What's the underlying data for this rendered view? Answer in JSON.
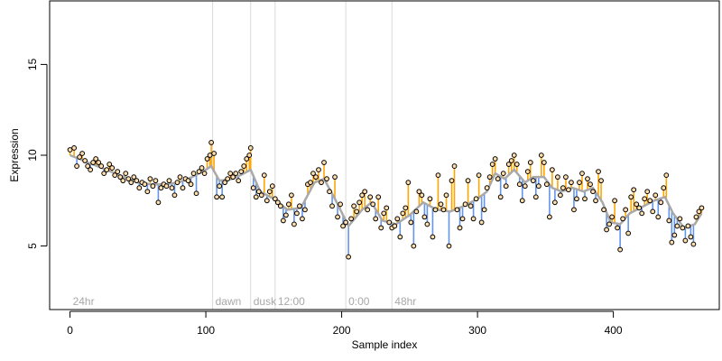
{
  "chart_data": {
    "type": "scatter",
    "title": "",
    "xlabel": "Sample index",
    "ylabel": "Expression",
    "xlim": [
      -15,
      478
    ],
    "ylim": [
      1.5,
      18.5
    ],
    "x_ticks": [
      0,
      100,
      200,
      300,
      400
    ],
    "y_ticks": [
      5,
      10,
      15
    ],
    "grid": false,
    "legend": "none",
    "colors": {
      "above_fit": "#ffa500",
      "below_fit": "#6495ed",
      "fit_line": "#a9a9a9",
      "point_fill": "#ffdead",
      "point_stroke": "#000000",
      "marker_line": "#d9d9d9",
      "marker_text": "#a8a8a8"
    },
    "markers": [
      {
        "x": 0,
        "label": "24hr"
      },
      {
        "x": 105,
        "label": "dawn"
      },
      {
        "x": 133,
        "label": "dusk"
      },
      {
        "x": 151,
        "label": "12:00"
      },
      {
        "x": 203,
        "label": "0:00"
      },
      {
        "x": 237,
        "label": "48hr"
      }
    ],
    "series": [
      {
        "points": [
          [
            0,
            10.3
          ],
          [
            3,
            10.4
          ],
          [
            5,
            9.4
          ],
          [
            7,
            9.9
          ],
          [
            9,
            10.1
          ],
          [
            11,
            9.7
          ],
          [
            13,
            9.4
          ],
          [
            15,
            9.2
          ],
          [
            17,
            9.6
          ],
          [
            19,
            9.8
          ],
          [
            21,
            9.6
          ],
          [
            23,
            9.4
          ],
          [
            25,
            9.0
          ],
          [
            27,
            9.2
          ],
          [
            29,
            9.5
          ],
          [
            31,
            9.3
          ],
          [
            33,
            8.9
          ],
          [
            35,
            9.1
          ],
          [
            37,
            8.8
          ],
          [
            39,
            8.6
          ],
          [
            41,
            9.0
          ],
          [
            43,
            8.7
          ],
          [
            45,
            8.5
          ],
          [
            47,
            8.8
          ],
          [
            49,
            8.6
          ],
          [
            51,
            8.2
          ],
          [
            53,
            8.5
          ],
          [
            55,
            8.4
          ],
          [
            57,
            8.0
          ],
          [
            59,
            8.7
          ],
          [
            61,
            8.3
          ],
          [
            63,
            8.6
          ],
          [
            65,
            7.4
          ],
          [
            67,
            8.2
          ],
          [
            69,
            8.4
          ],
          [
            71,
            8.3
          ],
          [
            73,
            8.6
          ],
          [
            75,
            8.2
          ],
          [
            77,
            7.8
          ],
          [
            79,
            8.5
          ],
          [
            81,
            8.8
          ],
          [
            83,
            8.2
          ],
          [
            85,
            8.7
          ],
          [
            87,
            8.6
          ],
          [
            89,
            8.4
          ],
          [
            91,
            9.0
          ],
          [
            93,
            7.9
          ],
          [
            95,
            9.1
          ],
          [
            97,
            9.3
          ],
          [
            99,
            9.0
          ],
          [
            101,
            9.8
          ],
          [
            103,
            10.0
          ],
          [
            104,
            10.7
          ],
          [
            106,
            10.1
          ],
          [
            108,
            7.7
          ],
          [
            110,
            8.3
          ],
          [
            112,
            7.7
          ],
          [
            114,
            8.5
          ],
          [
            116,
            8.7
          ],
          [
            118,
            9.0
          ],
          [
            120,
            8.8
          ],
          [
            122,
            9.0
          ],
          [
            124,
            8.6
          ],
          [
            126,
            9.1
          ],
          [
            128,
            9.4
          ],
          [
            130,
            9.8
          ],
          [
            132,
            10.0
          ],
          [
            133,
            10.4
          ],
          [
            135,
            8.2
          ],
          [
            137,
            7.7
          ],
          [
            139,
            8.0
          ],
          [
            141,
            7.8
          ],
          [
            143,
            8.9
          ],
          [
            145,
            7.5
          ],
          [
            147,
            8.0
          ],
          [
            149,
            8.3
          ],
          [
            151,
            7.6
          ],
          [
            153,
            7.4
          ],
          [
            155,
            7.2
          ],
          [
            157,
            6.4
          ],
          [
            159,
            6.7
          ],
          [
            161,
            7.3
          ],
          [
            163,
            7.8
          ],
          [
            165,
            6.2
          ],
          [
            167,
            6.8
          ],
          [
            169,
            7.2
          ],
          [
            171,
            6.5
          ],
          [
            173,
            7.0
          ],
          [
            175,
            8.4
          ],
          [
            177,
            8.5
          ],
          [
            179,
            9.0
          ],
          [
            181,
            8.8
          ],
          [
            183,
            9.2
          ],
          [
            185,
            8.5
          ],
          [
            187,
            9.6
          ],
          [
            189,
            8.7
          ],
          [
            191,
            8.0
          ],
          [
            193,
            7.2
          ],
          [
            195,
            8.8
          ],
          [
            197,
            6.6
          ],
          [
            199,
            7.3
          ],
          [
            201,
            6.1
          ],
          [
            203,
            6.3
          ],
          [
            205,
            4.4
          ],
          [
            207,
            6.5
          ],
          [
            209,
            7.2
          ],
          [
            211,
            6.9
          ],
          [
            213,
            7.4
          ],
          [
            215,
            7.8
          ],
          [
            217,
            8.0
          ],
          [
            219,
            7.0
          ],
          [
            221,
            7.7
          ],
          [
            223,
            7.3
          ],
          [
            225,
            6.5
          ],
          [
            227,
            7.7
          ],
          [
            229,
            6.0
          ],
          [
            231,
            6.8
          ],
          [
            233,
            7.1
          ],
          [
            235,
            6.3
          ],
          [
            237,
            6.0
          ],
          [
            239,
            6.1
          ],
          [
            241,
            6.5
          ],
          [
            243,
            5.5
          ],
          [
            245,
            6.8
          ],
          [
            247,
            7.1
          ],
          [
            249,
            8.5
          ],
          [
            251,
            6.3
          ],
          [
            253,
            5.0
          ],
          [
            255,
            6.9
          ],
          [
            257,
            8.0
          ],
          [
            259,
            7.8
          ],
          [
            261,
            6.6
          ],
          [
            263,
            6.2
          ],
          [
            265,
            7.6
          ],
          [
            267,
            5.5
          ],
          [
            269,
            7.0
          ],
          [
            271,
            8.9
          ],
          [
            273,
            7.3
          ],
          [
            275,
            7.0
          ],
          [
            277,
            7.8
          ],
          [
            279,
            5.0
          ],
          [
            281,
            8.6
          ],
          [
            283,
            9.4
          ],
          [
            285,
            7.0
          ],
          [
            287,
            6.0
          ],
          [
            289,
            6.5
          ],
          [
            291,
            7.3
          ],
          [
            293,
            8.6
          ],
          [
            295,
            7.2
          ],
          [
            297,
            6.5
          ],
          [
            299,
            7.6
          ],
          [
            301,
            8.9
          ],
          [
            303,
            6.3
          ],
          [
            305,
            7.0
          ],
          [
            307,
            8.2
          ],
          [
            309,
            8.8
          ],
          [
            311,
            9.5
          ],
          [
            313,
            9.8
          ],
          [
            315,
            8.7
          ],
          [
            317,
            7.7
          ],
          [
            319,
            9.0
          ],
          [
            321,
            8.3
          ],
          [
            323,
            9.5
          ],
          [
            325,
            9.7
          ],
          [
            327,
            10.0
          ],
          [
            329,
            9.5
          ],
          [
            331,
            8.4
          ],
          [
            333,
            7.5
          ],
          [
            335,
            8.3
          ],
          [
            337,
            9.1
          ],
          [
            339,
            9.6
          ],
          [
            341,
            8.6
          ],
          [
            343,
            7.7
          ],
          [
            345,
            8.3
          ],
          [
            347,
            10.0
          ],
          [
            349,
            9.6
          ],
          [
            351,
            8.4
          ],
          [
            353,
            6.6
          ],
          [
            355,
            9.2
          ],
          [
            357,
            7.4
          ],
          [
            359,
            8.8
          ],
          [
            361,
            7.8
          ],
          [
            363,
            8.2
          ],
          [
            365,
            8.8
          ],
          [
            367,
            8.1
          ],
          [
            369,
            8.5
          ],
          [
            371,
            7.0
          ],
          [
            373,
            7.6
          ],
          [
            375,
            8.5
          ],
          [
            377,
            9.0
          ],
          [
            379,
            7.6
          ],
          [
            381,
            8.7
          ],
          [
            383,
            8.4
          ],
          [
            385,
            8.0
          ],
          [
            387,
            7.5
          ],
          [
            389,
            9.1
          ],
          [
            391,
            8.6
          ],
          [
            393,
            7.0
          ],
          [
            395,
            5.9
          ],
          [
            397,
            6.2
          ],
          [
            399,
            6.6
          ],
          [
            401,
            7.5
          ],
          [
            403,
            6.0
          ],
          [
            405,
            4.8
          ],
          [
            407,
            6.5
          ],
          [
            409,
            7.0
          ],
          [
            411,
            5.7
          ],
          [
            413,
            7.7
          ],
          [
            415,
            8.1
          ],
          [
            417,
            7.3
          ],
          [
            419,
            7.1
          ],
          [
            421,
            6.8
          ],
          [
            423,
            7.6
          ],
          [
            425,
            8.0
          ],
          [
            427,
            7.5
          ],
          [
            429,
            6.9
          ],
          [
            431,
            7.8
          ],
          [
            433,
            6.6
          ],
          [
            435,
            7.4
          ],
          [
            437,
            8.2
          ],
          [
            439,
            8.9
          ],
          [
            441,
            6.4
          ],
          [
            443,
            5.2
          ],
          [
            445,
            5.6
          ],
          [
            447,
            6.1
          ],
          [
            449,
            6.5
          ],
          [
            451,
            6.0
          ],
          [
            453,
            5.3
          ],
          [
            455,
            6.1
          ],
          [
            457,
            5.5
          ],
          [
            459,
            5.1
          ],
          [
            461,
            6.6
          ],
          [
            463,
            6.9
          ],
          [
            465,
            7.1
          ]
        ],
        "fit": [
          [
            0,
            10.0
          ],
          [
            10,
            9.7
          ],
          [
            20,
            9.4
          ],
          [
            30,
            9.1
          ],
          [
            40,
            8.8
          ],
          [
            50,
            8.5
          ],
          [
            60,
            8.4
          ],
          [
            70,
            8.4
          ],
          [
            80,
            8.5
          ],
          [
            90,
            8.8
          ],
          [
            100,
            9.2
          ],
          [
            104,
            9.4
          ],
          [
            110,
            8.6
          ],
          [
            120,
            8.7
          ],
          [
            128,
            9.0
          ],
          [
            133,
            9.2
          ],
          [
            140,
            8.0
          ],
          [
            150,
            7.6
          ],
          [
            160,
            7.0
          ],
          [
            170,
            7.1
          ],
          [
            180,
            8.5
          ],
          [
            187,
            8.7
          ],
          [
            195,
            7.6
          ],
          [
            205,
            6.1
          ],
          [
            215,
            7.0
          ],
          [
            222,
            7.4
          ],
          [
            230,
            6.4
          ],
          [
            240,
            6.2
          ],
          [
            250,
            6.7
          ],
          [
            260,
            7.4
          ],
          [
            270,
            7.0
          ],
          [
            280,
            6.9
          ],
          [
            290,
            7.2
          ],
          [
            300,
            7.6
          ],
          [
            307,
            8.0
          ],
          [
            313,
            9.0
          ],
          [
            320,
            8.7
          ],
          [
            327,
            9.2
          ],
          [
            335,
            8.5
          ],
          [
            341,
            8.8
          ],
          [
            349,
            8.8
          ],
          [
            355,
            8.2
          ],
          [
            362,
            8.0
          ],
          [
            370,
            8.2
          ],
          [
            378,
            8.0
          ],
          [
            385,
            8.2
          ],
          [
            392,
            7.4
          ],
          [
            398,
            6.3
          ],
          [
            405,
            6.2
          ],
          [
            412,
            6.8
          ],
          [
            420,
            7.1
          ],
          [
            430,
            7.5
          ],
          [
            438,
            7.7
          ],
          [
            444,
            6.8
          ],
          [
            452,
            6.0
          ],
          [
            460,
            6.2
          ],
          [
            465,
            6.8
          ]
        ]
      }
    ]
  }
}
